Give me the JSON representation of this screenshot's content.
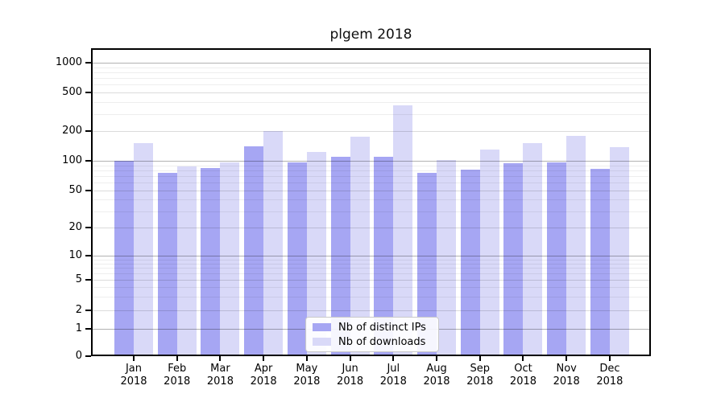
{
  "title": "plgem 2018",
  "chart_data": {
    "type": "bar",
    "title": "plgem 2018",
    "categories": [
      "Jan 2018",
      "Feb 2018",
      "Mar 2018",
      "Apr 2018",
      "May 2018",
      "Jun 2018",
      "Jul 2018",
      "Aug 2018",
      "Sep 2018",
      "Oct 2018",
      "Nov 2018",
      "Dec 2018"
    ],
    "series": [
      {
        "name": "Nb of distinct IPs",
        "color": "#a6a6f3",
        "values": [
          100,
          76,
          84,
          140,
          97,
          110,
          109,
          76,
          81,
          94,
          96,
          83
        ]
      },
      {
        "name": "Nb of downloads",
        "color": "#d9d9f8",
        "values": [
          150,
          88,
          96,
          200,
          124,
          175,
          365,
          101,
          130,
          150,
          180,
          138
        ]
      }
    ],
    "yscale": "symlog",
    "y_ticks": [
      0,
      1,
      2,
      5,
      10,
      20,
      50,
      100,
      200,
      500,
      1000
    ],
    "ylim": [
      0,
      1400
    ],
    "xlabel": "",
    "ylabel": "",
    "grid": "on",
    "legend_position": "inside-bottom-center"
  },
  "legend": {
    "items": [
      {
        "label": "Nb of distinct IPs"
      },
      {
        "label": "Nb of downloads"
      }
    ]
  }
}
